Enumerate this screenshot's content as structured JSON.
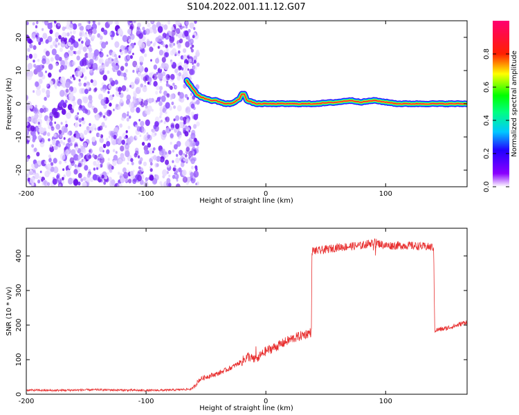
{
  "title": "S104.2022.001.11.12.G07",
  "chart_data": [
    {
      "type": "heatmap",
      "xlabel": "Height of straight line (km)",
      "ylabel": "Frequency (Hz)",
      "xlim": [
        -200,
        168
      ],
      "ylim": [
        -25,
        25
      ],
      "x_ticks": [
        -200,
        -100,
        0,
        100
      ],
      "y_ticks": [
        -20,
        -10,
        0,
        10,
        20
      ],
      "colorbar": {
        "label": "Normalized spectral amplitude",
        "range": [
          0,
          1
        ],
        "ticks": [
          "0.0",
          "0.2",
          "0.4",
          "0.6",
          "0.8"
        ]
      },
      "noise_region_x": [
        -200,
        -60
      ],
      "ridge": {
        "x": [
          -66,
          -62,
          -58,
          -54,
          -50,
          -46,
          -42,
          -38,
          -34,
          -30,
          -26,
          -22,
          -20,
          -18,
          -16,
          -12,
          -8,
          0,
          20,
          40,
          60,
          70,
          80,
          90,
          100,
          110,
          120,
          130,
          140,
          150,
          160,
          168
        ],
        "freq": [
          7,
          5,
          3,
          2,
          1.5,
          1,
          1,
          0.5,
          0,
          0,
          0.5,
          1.5,
          3,
          3,
          1,
          0.5,
          0,
          0,
          0,
          0,
          0.5,
          1,
          0.5,
          1,
          0.5,
          0,
          0,
          0,
          0,
          0,
          0,
          0
        ]
      }
    },
    {
      "type": "line",
      "xlabel": "Height of straight line (km)",
      "ylabel": "SNR (10 * v/v)",
      "xlim": [
        -200,
        168
      ],
      "ylim": [
        0,
        480
      ],
      "x_ticks": [
        -200,
        -100,
        0,
        100
      ],
      "y_ticks": [
        0,
        100,
        200,
        300,
        400
      ],
      "color": "#e83030",
      "series": [
        {
          "x": [
            -200,
            -180,
            -160,
            -140,
            -120,
            -100,
            -80,
            -62,
            -58,
            -56,
            -54,
            -50,
            -40,
            -30,
            -20,
            -15,
            -10,
            -5,
            0,
            10,
            20,
            30,
            38,
            38.5,
            45,
            60,
            80,
            90,
            100,
            120,
            140,
            141,
            150,
            160,
            168
          ],
          "y": [
            12,
            11,
            12,
            13,
            12,
            11,
            12,
            15,
            30,
            40,
            45,
            50,
            60,
            75,
            95,
            110,
            100,
            110,
            125,
            140,
            158,
            170,
            180,
            415,
            415,
            425,
            430,
            440,
            430,
            430,
            425,
            185,
            190,
            200,
            210
          ]
        }
      ]
    }
  ]
}
